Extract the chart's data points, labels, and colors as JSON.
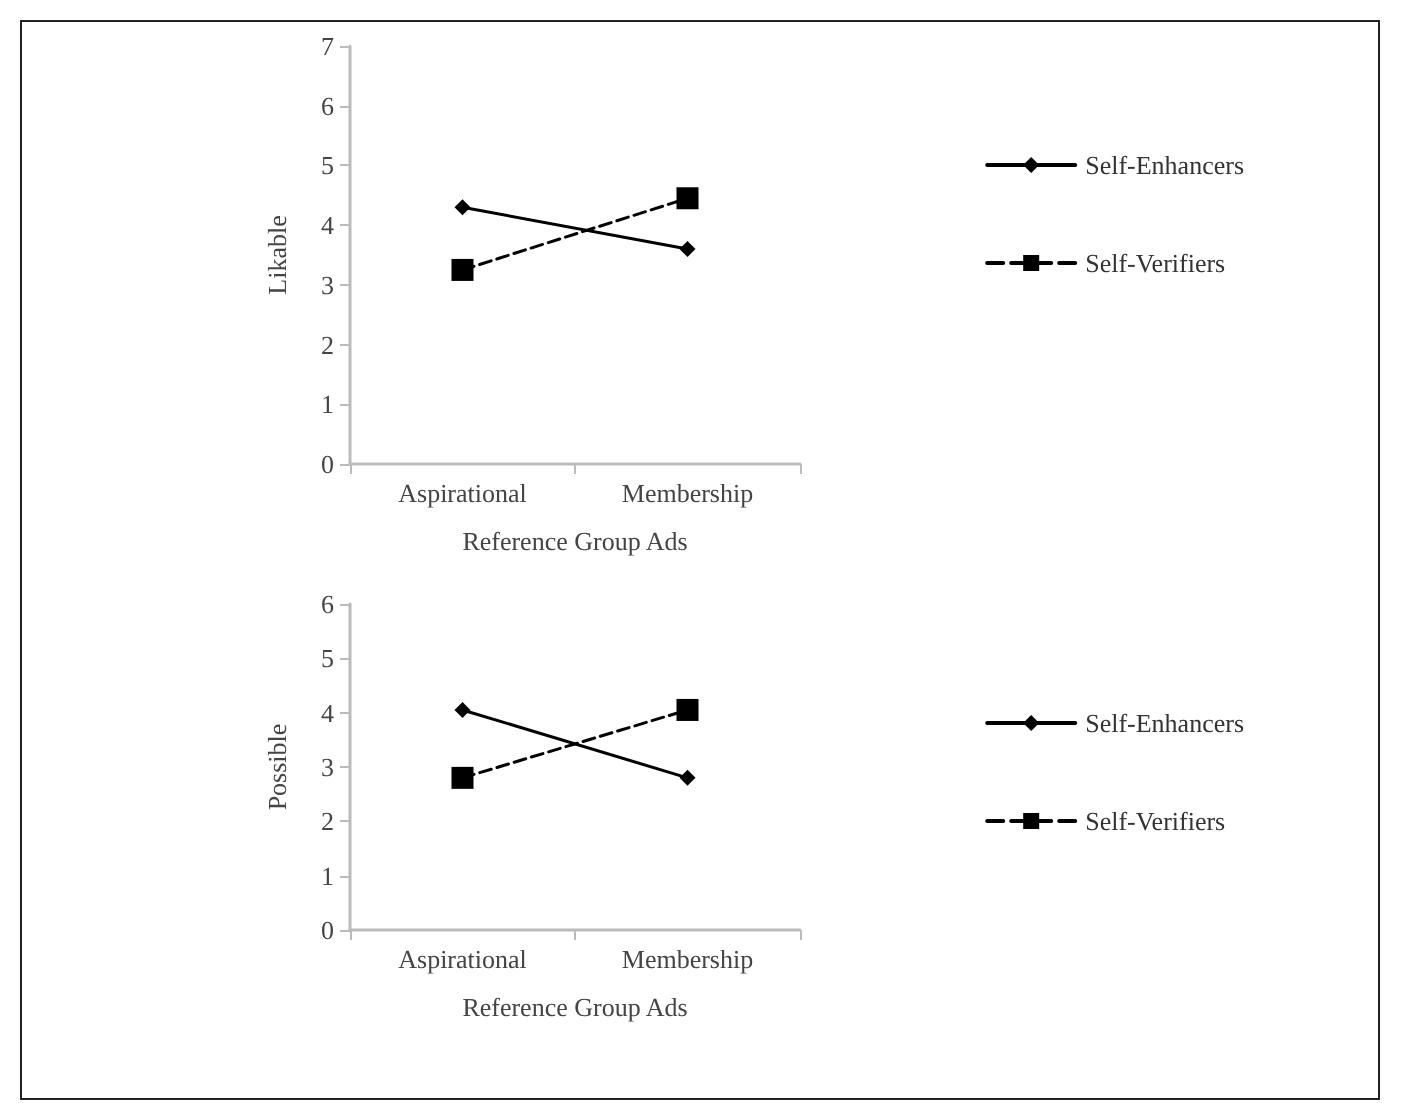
{
  "chart_data": [
    {
      "type": "line",
      "ylabel": "Likable",
      "xlabel": "Reference Group Ads",
      "categories": [
        "Aspirational",
        "Membership"
      ],
      "series": [
        {
          "name": "Self-Enhancers",
          "color": "#000000",
          "values": [
            4.3,
            3.6
          ],
          "marker": "diamond",
          "line_style": "solid"
        },
        {
          "name": "Self-Verifiers",
          "color": "#000000",
          "values": [
            3.25,
            4.45
          ],
          "marker": "square",
          "line_style": "dashed"
        }
      ],
      "ylim": [
        0,
        7
      ],
      "yticks": [
        0,
        1,
        2,
        3,
        4,
        5,
        6,
        7
      ],
      "grid": false,
      "legend": "right"
    },
    {
      "type": "line",
      "ylabel": "Possible",
      "xlabel": "Reference Group Ads",
      "categories": [
        "Aspirational",
        "Membership"
      ],
      "series": [
        {
          "name": "Self-Enhancers",
          "color": "#000000",
          "values": [
            4.05,
            2.8
          ],
          "marker": "diamond",
          "line_style": "solid"
        },
        {
          "name": "Self-Verifiers",
          "color": "#000000",
          "values": [
            2.8,
            4.05
          ],
          "marker": "square",
          "line_style": "dashed"
        }
      ],
      "ylim": [
        0,
        6
      ],
      "yticks": [
        0,
        1,
        2,
        3,
        4,
        5,
        6
      ],
      "grid": false,
      "legend": "right"
    }
  ]
}
